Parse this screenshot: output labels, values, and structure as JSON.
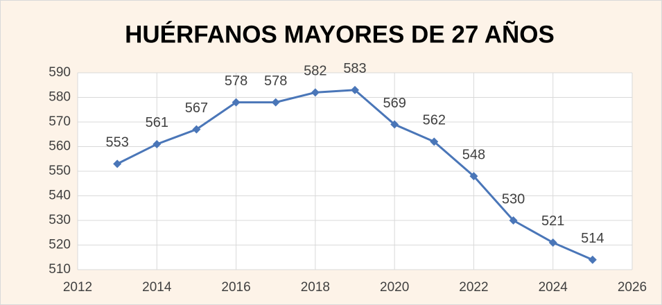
{
  "chart_data": {
    "type": "line",
    "title": "HUÉRFANOS MAYORES DE 27 AÑOS",
    "x": [
      2013,
      2014,
      2015,
      2016,
      2017,
      2018,
      2019,
      2020,
      2021,
      2022,
      2023,
      2024,
      2025
    ],
    "values": [
      553,
      561,
      567,
      578,
      578,
      582,
      583,
      569,
      562,
      548,
      530,
      521,
      514
    ],
    "color": "#4a76b8",
    "xlim": [
      2012,
      2026
    ],
    "xticks": [
      2012,
      2014,
      2016,
      2018,
      2020,
      2022,
      2024,
      2026
    ],
    "ylim": [
      510,
      590
    ],
    "yticks": [
      510,
      520,
      530,
      540,
      550,
      560,
      570,
      580,
      590
    ],
    "grid": true
  }
}
